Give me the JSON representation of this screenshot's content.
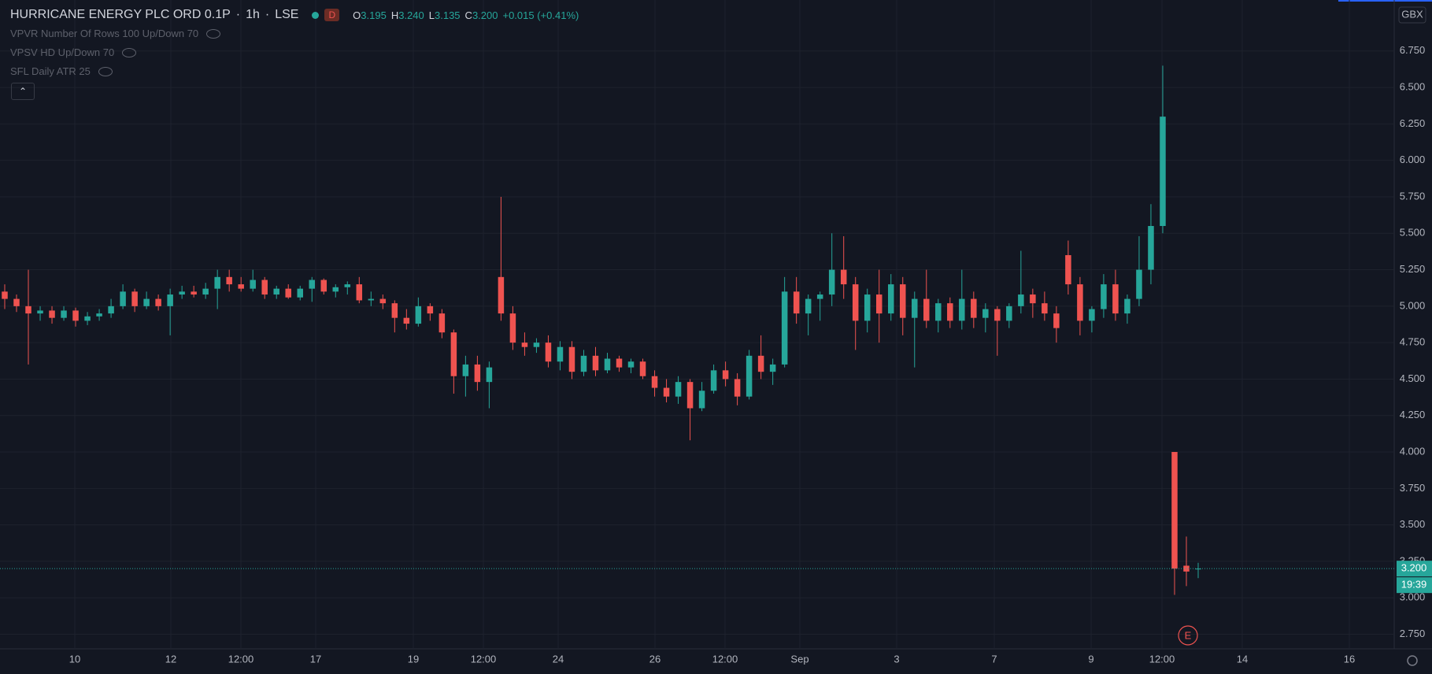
{
  "header": {
    "symbol": "HURRICANE ENERGY PLC ORD 0.1P",
    "separator": "·",
    "interval": "1h",
    "exchange": "LSE",
    "badge": "D",
    "ohlc": [
      {
        "key": "O",
        "value": "3.195"
      },
      {
        "key": "H",
        "value": "3.240"
      },
      {
        "key": "L",
        "value": "3.135"
      },
      {
        "key": "C",
        "value": "3.200"
      }
    ],
    "change": "+0.015 (+0.41%)"
  },
  "indicators": [
    "VPVR Number Of Rows 100 Up/Down 70",
    "VPSV HD Up/Down 70",
    "SFL Daily ATR 25"
  ],
  "currency": "GBX",
  "countdown": "19:39",
  "event_marker": "E",
  "chart_data": {
    "type": "candlestick",
    "up_color": "#26a69a",
    "down_color": "#ef5350",
    "grid": true,
    "x_labels": [
      "10",
      "12",
      "12:00",
      "17",
      "19",
      "12:00",
      "24",
      "26",
      "12:00",
      "Sep",
      "3",
      "7",
      "9",
      "12:00",
      "14",
      "16"
    ],
    "open": [
      5.1,
      5.05,
      5.0,
      4.95,
      4.97,
      4.92,
      4.97,
      4.9,
      4.93,
      4.95,
      5.0,
      5.1,
      5.0,
      5.05,
      5.0,
      5.08,
      5.1,
      5.08,
      5.12,
      5.2,
      5.15,
      5.12,
      5.18,
      5.08,
      5.12,
      5.06,
      5.12,
      5.18,
      5.1,
      5.13,
      5.15,
      5.04,
      5.05,
      5.02,
      4.92,
      4.88,
      5.0,
      4.95,
      4.82,
      4.52,
      4.6,
      4.48,
      5.2,
      4.95,
      4.75,
      4.72,
      4.75,
      4.62,
      4.72,
      4.55,
      4.66,
      4.56,
      4.64,
      4.58,
      4.62,
      4.52,
      4.44,
      4.38,
      4.48,
      4.3,
      4.42,
      4.56,
      4.5,
      4.38,
      4.66,
      4.55,
      4.6,
      5.1,
      4.95,
      5.05,
      5.08,
      5.25,
      5.15,
      4.9,
      5.08,
      4.95,
      5.15,
      4.92,
      5.05,
      4.9,
      5.02,
      4.9,
      5.05,
      4.92,
      4.98,
      4.9,
      5.0,
      5.08,
      5.02,
      4.95,
      5.35,
      5.15,
      4.9,
      4.98,
      5.15,
      4.95,
      5.05,
      5.25,
      5.55,
      4.0,
      3.22,
      3.195
    ],
    "high": [
      5.15,
      5.08,
      5.25,
      5.0,
      5.0,
      5.0,
      4.99,
      4.96,
      4.98,
      5.05,
      5.15,
      5.12,
      5.1,
      5.08,
      5.12,
      5.14,
      5.14,
      5.16,
      5.25,
      5.25,
      5.2,
      5.25,
      5.2,
      5.14,
      5.15,
      5.14,
      5.2,
      5.19,
      5.15,
      5.17,
      5.2,
      5.1,
      5.08,
      5.04,
      4.98,
      5.06,
      5.02,
      4.98,
      4.84,
      4.66,
      4.66,
      4.62,
      5.75,
      5.0,
      4.82,
      4.78,
      4.8,
      4.76,
      4.76,
      4.7,
      4.72,
      4.68,
      4.66,
      4.64,
      4.64,
      4.56,
      4.5,
      4.52,
      4.5,
      4.48,
      4.6,
      4.62,
      4.54,
      4.7,
      4.8,
      4.64,
      5.2,
      5.2,
      5.08,
      5.1,
      5.5,
      5.48,
      5.2,
      5.12,
      5.25,
      5.22,
      5.2,
      5.1,
      5.25,
      5.05,
      5.06,
      5.25,
      5.1,
      5.02,
      5.0,
      5.02,
      5.38,
      5.12,
      5.1,
      5.0,
      5.45,
      5.2,
      5.0,
      5.22,
      5.25,
      5.08,
      5.48,
      5.7,
      6.65,
      4.0,
      3.42,
      3.24
    ],
    "low": [
      4.98,
      4.96,
      4.6,
      4.9,
      4.88,
      4.9,
      4.86,
      4.87,
      4.9,
      4.92,
      4.98,
      4.96,
      4.98,
      4.97,
      4.8,
      5.05,
      5.06,
      5.05,
      4.98,
      5.1,
      5.1,
      5.1,
      5.05,
      5.05,
      5.05,
      5.04,
      5.03,
      5.08,
      5.06,
      5.08,
      5.02,
      5.0,
      4.98,
      4.82,
      4.84,
      4.86,
      4.9,
      4.78,
      4.4,
      4.38,
      4.42,
      4.3,
      4.9,
      4.7,
      4.66,
      4.68,
      4.58,
      4.56,
      4.5,
      4.52,
      4.52,
      4.54,
      4.55,
      4.54,
      4.5,
      4.38,
      4.34,
      4.33,
      4.08,
      4.28,
      4.4,
      4.45,
      4.32,
      4.36,
      4.5,
      4.46,
      4.58,
      4.88,
      4.8,
      4.9,
      5.0,
      5.05,
      4.7,
      4.82,
      4.75,
      4.9,
      4.8,
      4.58,
      4.85,
      4.82,
      4.85,
      4.84,
      4.85,
      4.82,
      4.66,
      4.85,
      4.95,
      4.92,
      4.9,
      4.75,
      5.08,
      4.8,
      4.82,
      4.92,
      4.9,
      4.88,
      5.0,
      5.15,
      5.5,
      3.02,
      3.08,
      3.135
    ],
    "close": [
      5.05,
      5.0,
      4.95,
      4.97,
      4.92,
      4.97,
      4.9,
      4.93,
      4.95,
      5.0,
      5.1,
      5.0,
      5.05,
      5.0,
      5.08,
      5.1,
      5.08,
      5.12,
      5.2,
      5.15,
      5.12,
      5.18,
      5.08,
      5.12,
      5.06,
      5.12,
      5.18,
      5.1,
      5.13,
      5.15,
      5.04,
      5.05,
      5.02,
      4.92,
      4.88,
      5.0,
      4.95,
      4.82,
      4.52,
      4.6,
      4.48,
      4.58,
      4.95,
      4.75,
      4.72,
      4.75,
      4.62,
      4.72,
      4.55,
      4.66,
      4.56,
      4.64,
      4.58,
      4.62,
      4.52,
      4.44,
      4.38,
      4.48,
      4.3,
      4.42,
      4.56,
      4.5,
      4.38,
      4.66,
      4.55,
      4.6,
      5.1,
      4.95,
      5.05,
      5.08,
      5.25,
      5.15,
      4.9,
      5.08,
      4.95,
      5.15,
      4.92,
      5.05,
      4.9,
      5.02,
      4.9,
      5.05,
      4.92,
      4.98,
      4.9,
      5.0,
      5.08,
      5.02,
      4.95,
      4.85,
      5.15,
      4.9,
      4.98,
      5.15,
      4.95,
      5.05,
      5.25,
      5.55,
      6.3,
      3.2,
      3.18,
      3.2
    ],
    "ylim": [
      2.65,
      7.1
    ],
    "yticks": [
      {
        "value": 2.75,
        "label": "2.750"
      },
      {
        "value": 3.0,
        "label": "3.000"
      },
      {
        "value": 3.25,
        "label": "3.250"
      },
      {
        "value": 3.5,
        "label": "3.500"
      },
      {
        "value": 3.75,
        "label": "3.750"
      },
      {
        "value": 4.0,
        "label": "4.000"
      },
      {
        "value": 4.25,
        "label": "4.250"
      },
      {
        "value": 4.5,
        "label": "4.500"
      },
      {
        "value": 4.75,
        "label": "4.750"
      },
      {
        "value": 5.0,
        "label": "5.000"
      },
      {
        "value": 5.25,
        "label": "5.250"
      },
      {
        "value": 5.5,
        "label": "5.500"
      },
      {
        "value": 5.75,
        "label": "5.750"
      },
      {
        "value": 6.0,
        "label": "6.000"
      },
      {
        "value": 6.25,
        "label": "6.250"
      },
      {
        "value": 6.5,
        "label": "6.500"
      },
      {
        "value": 6.75,
        "label": "6.750"
      }
    ],
    "last_price": {
      "value": 3.2,
      "label": "3.200"
    }
  }
}
